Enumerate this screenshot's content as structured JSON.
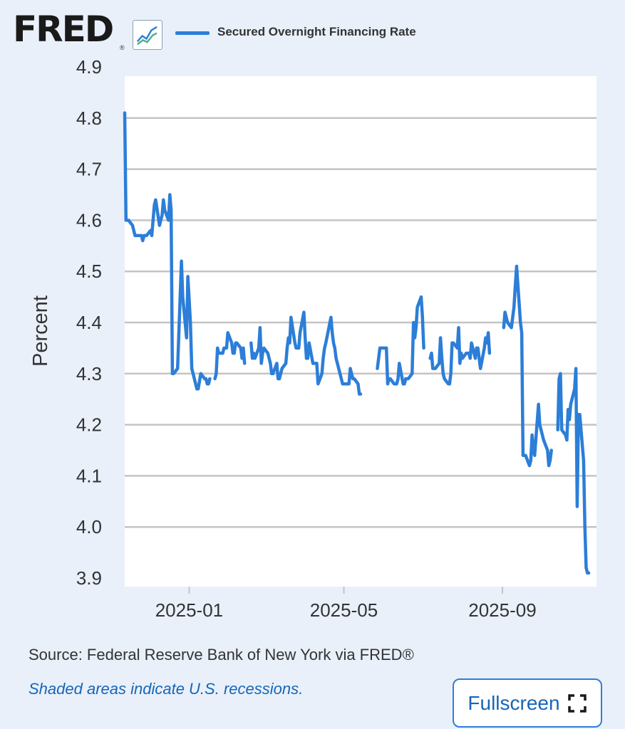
{
  "header": {
    "logo_text": "FRED",
    "logo_registered": "®",
    "logo_icon": "chart-trend-icon"
  },
  "footer": {
    "source": "Source: Federal Reserve Bank of New York via FRED®",
    "recession_note": "Shaded areas indicate U.S. recessions.",
    "fullscreen_label": "Fullscreen",
    "fullscreen_icon": "fullscreen-corners-icon"
  },
  "colors": {
    "background": "#e9f0fa",
    "plot_background": "#ffffff",
    "line": "#2c7ed8",
    "grid": "#c4c4c4",
    "link": "#1766b7"
  },
  "chart_data": {
    "type": "line",
    "ylabel": "Percent",
    "xlabel": "",
    "ylim": [
      3.9,
      4.9
    ],
    "yticks": [
      "3.9",
      "4.0",
      "4.1",
      "4.2",
      "4.3",
      "4.4",
      "4.5",
      "4.6",
      "4.7",
      "4.8",
      "4.9"
    ],
    "xlim": [
      "2024-11-12",
      "2025-11-13"
    ],
    "xticks": [
      "2025-01",
      "2025-05",
      "2025-09"
    ],
    "grid": "horizontal",
    "legend": "top",
    "series": [
      {
        "name": "Secured Overnight Financing Rate",
        "segments": [
          [
            [
              "2024-11-12",
              4.81
            ],
            [
              "2024-11-13",
              4.6
            ],
            [
              "2024-11-14",
              4.6
            ],
            [
              "2024-11-15",
              4.6
            ],
            [
              "2024-11-18",
              4.59
            ],
            [
              "2024-11-19",
              4.58
            ],
            [
              "2024-11-20",
              4.57
            ],
            [
              "2024-11-21",
              4.57
            ],
            [
              "2024-11-22",
              4.57
            ],
            [
              "2024-11-25",
              4.57
            ],
            [
              "2024-11-26",
              4.56
            ],
            [
              "2024-11-27",
              4.57
            ],
            [
              "2024-11-29",
              4.57
            ],
            [
              "2024-12-02",
              4.58
            ],
            [
              "2024-12-03",
              4.57
            ],
            [
              "2024-12-04",
              4.6
            ],
            [
              "2024-12-05",
              4.63
            ],
            [
              "2024-12-06",
              4.64
            ],
            [
              "2024-12-09",
              4.59
            ],
            [
              "2024-12-10",
              4.6
            ],
            [
              "2024-12-11",
              4.61
            ],
            [
              "2024-12-12",
              4.64
            ],
            [
              "2024-12-13",
              4.62
            ],
            [
              "2024-12-16",
              4.6
            ],
            [
              "2024-12-17",
              4.65
            ],
            [
              "2024-12-18",
              4.62
            ],
            [
              "2024-12-19",
              4.3
            ],
            [
              "2024-12-20",
              4.3
            ],
            [
              "2024-12-23",
              4.31
            ],
            [
              "2024-12-24",
              4.38
            ],
            [
              "2024-12-26",
              4.52
            ],
            [
              "2024-12-27",
              4.45
            ],
            [
              "2024-12-30",
              4.37
            ],
            [
              "2024-12-31",
              4.49
            ],
            [
              "2025-01-02",
              4.4
            ],
            [
              "2025-01-03",
              4.31
            ],
            [
              "2025-01-06",
              4.28
            ],
            [
              "2025-01-07",
              4.27
            ],
            [
              "2025-01-08",
              4.27
            ],
            [
              "2025-01-10",
              4.3
            ],
            [
              "2025-01-13",
              4.29
            ],
            [
              "2025-01-14",
              4.29
            ],
            [
              "2025-01-15",
              4.28
            ],
            [
              "2025-01-16",
              4.28
            ],
            [
              "2025-01-17",
              4.29
            ]
          ],
          [
            [
              "2025-01-21",
              4.29
            ],
            [
              "2025-01-22",
              4.3
            ],
            [
              "2025-01-23",
              4.35
            ],
            [
              "2025-01-24",
              4.34
            ],
            [
              "2025-01-27",
              4.34
            ],
            [
              "2025-01-28",
              4.35
            ],
            [
              "2025-01-29",
              4.35
            ],
            [
              "2025-01-30",
              4.35
            ],
            [
              "2025-01-31",
              4.38
            ],
            [
              "2025-02-03",
              4.36
            ],
            [
              "2025-02-04",
              4.34
            ],
            [
              "2025-02-05",
              4.34
            ],
            [
              "2025-02-06",
              4.36
            ],
            [
              "2025-02-07",
              4.36
            ],
            [
              "2025-02-10",
              4.35
            ],
            [
              "2025-02-11",
              4.33
            ],
            [
              "2025-02-12",
              4.35
            ],
            [
              "2025-02-13",
              4.32
            ]
          ],
          [
            [
              "2025-02-18",
              4.36
            ],
            [
              "2025-02-19",
              4.33
            ],
            [
              "2025-02-20",
              4.34
            ],
            [
              "2025-02-21",
              4.33
            ],
            [
              "2025-02-24",
              4.35
            ],
            [
              "2025-02-25",
              4.39
            ],
            [
              "2025-02-26",
              4.32
            ],
            [
              "2025-02-27",
              4.34
            ],
            [
              "2025-02-28",
              4.35
            ],
            [
              "2025-03-03",
              4.34
            ],
            [
              "2025-03-04",
              4.33
            ],
            [
              "2025-03-05",
              4.32
            ],
            [
              "2025-03-06",
              4.3
            ],
            [
              "2025-03-07",
              4.3
            ],
            [
              "2025-03-10",
              4.32
            ],
            [
              "2025-03-11",
              4.29
            ],
            [
              "2025-03-12",
              4.29
            ],
            [
              "2025-03-13",
              4.3
            ],
            [
              "2025-03-14",
              4.31
            ],
            [
              "2025-03-17",
              4.32
            ],
            [
              "2025-03-18",
              4.35
            ],
            [
              "2025-03-19",
              4.37
            ],
            [
              "2025-03-20",
              4.36
            ],
            [
              "2025-03-21",
              4.41
            ],
            [
              "2025-03-24",
              4.36
            ],
            [
              "2025-03-25",
              4.35
            ],
            [
              "2025-03-26",
              4.35
            ],
            [
              "2025-03-27",
              4.35
            ],
            [
              "2025-03-28",
              4.38
            ],
            [
              "2025-03-31",
              4.42
            ],
            [
              "2025-04-01",
              4.37
            ],
            [
              "2025-04-02",
              4.33
            ],
            [
              "2025-04-03",
              4.33
            ],
            [
              "2025-04-04",
              4.36
            ],
            [
              "2025-04-07",
              4.32
            ],
            [
              "2025-04-08",
              4.32
            ],
            [
              "2025-04-09",
              4.32
            ],
            [
              "2025-04-10",
              4.32
            ],
            [
              "2025-04-11",
              4.28
            ],
            [
              "2025-04-14",
              4.3
            ],
            [
              "2025-04-15",
              4.33
            ],
            [
              "2025-04-16",
              4.35
            ],
            [
              "2025-04-17",
              4.36
            ],
            [
              "2025-04-21",
              4.41
            ],
            [
              "2025-04-22",
              4.38
            ],
            [
              "2025-04-23",
              4.36
            ],
            [
              "2025-04-24",
              4.35
            ],
            [
              "2025-04-25",
              4.33
            ],
            [
              "2025-04-28",
              4.3
            ],
            [
              "2025-04-29",
              4.29
            ],
            [
              "2025-04-30",
              4.28
            ],
            [
              "2025-05-01",
              4.28
            ],
            [
              "2025-05-02",
              4.28
            ],
            [
              "2025-05-05",
              4.28
            ],
            [
              "2025-05-06",
              4.31
            ],
            [
              "2025-05-07",
              4.3
            ],
            [
              "2025-05-08",
              4.29
            ],
            [
              "2025-05-09",
              4.29
            ],
            [
              "2025-05-12",
              4.28
            ],
            [
              "2025-05-13",
              4.26
            ],
            [
              "2025-05-14",
              4.26
            ]
          ],
          [
            [
              "2025-05-27",
              4.31
            ],
            [
              "2025-05-28",
              4.33
            ],
            [
              "2025-05-29",
              4.35
            ],
            [
              "2025-05-30",
              4.35
            ],
            [
              "2025-06-02",
              4.35
            ],
            [
              "2025-06-03",
              4.35
            ],
            [
              "2025-06-04",
              4.28
            ],
            [
              "2025-06-05",
              4.29
            ],
            [
              "2025-06-06",
              4.29
            ],
            [
              "2025-06-09",
              4.28
            ],
            [
              "2025-06-10",
              4.28
            ],
            [
              "2025-06-11",
              4.28
            ],
            [
              "2025-06-12",
              4.29
            ],
            [
              "2025-06-13",
              4.32
            ],
            [
              "2025-06-16",
              4.28
            ],
            [
              "2025-06-17",
              4.28
            ],
            [
              "2025-06-18",
              4.29
            ],
            [
              "2025-06-20",
              4.29
            ],
            [
              "2025-06-23",
              4.3
            ],
            [
              "2025-06-24",
              4.4
            ],
            [
              "2025-06-25",
              4.37
            ],
            [
              "2025-06-26",
              4.39
            ],
            [
              "2025-06-27",
              4.43
            ],
            [
              "2025-06-30",
              4.45
            ],
            [
              "2025-07-01",
              4.41
            ],
            [
              "2025-07-02",
              4.35
            ]
          ],
          [
            [
              "2025-07-07",
              4.33
            ],
            [
              "2025-07-08",
              4.34
            ],
            [
              "2025-07-09",
              4.31
            ],
            [
              "2025-07-10",
              4.31
            ],
            [
              "2025-07-11",
              4.31
            ],
            [
              "2025-07-14",
              4.32
            ],
            [
              "2025-07-15",
              4.37
            ],
            [
              "2025-07-16",
              4.33
            ],
            [
              "2025-07-17",
              4.3
            ],
            [
              "2025-07-18",
              4.29
            ],
            [
              "2025-07-21",
              4.28
            ],
            [
              "2025-07-22",
              4.28
            ],
            [
              "2025-07-23",
              4.3
            ],
            [
              "2025-07-24",
              4.36
            ],
            [
              "2025-07-25",
              4.36
            ],
            [
              "2025-07-28",
              4.35
            ],
            [
              "2025-07-29",
              4.39
            ],
            [
              "2025-07-30",
              4.32
            ],
            [
              "2025-07-31",
              4.34
            ],
            [
              "2025-08-01",
              4.33
            ],
            [
              "2025-08-04",
              4.34
            ],
            [
              "2025-08-05",
              4.34
            ],
            [
              "2025-08-06",
              4.34
            ],
            [
              "2025-08-07",
              4.33
            ],
            [
              "2025-08-08",
              4.36
            ],
            [
              "2025-08-11",
              4.33
            ],
            [
              "2025-08-12",
              4.35
            ],
            [
              "2025-08-13",
              4.35
            ],
            [
              "2025-08-14",
              4.33
            ],
            [
              "2025-08-15",
              4.31
            ],
            [
              "2025-08-18",
              4.35
            ],
            [
              "2025-08-19",
              4.37
            ],
            [
              "2025-08-20",
              4.36
            ],
            [
              "2025-08-21",
              4.38
            ],
            [
              "2025-08-22",
              4.34
            ]
          ],
          [
            [
              "2025-09-02",
              4.39
            ],
            [
              "2025-09-03",
              4.42
            ],
            [
              "2025-09-04",
              4.41
            ],
            [
              "2025-09-05",
              4.4
            ],
            [
              "2025-09-08",
              4.39
            ],
            [
              "2025-09-09",
              4.41
            ],
            [
              "2025-09-10",
              4.43
            ],
            [
              "2025-09-11",
              4.47
            ],
            [
              "2025-09-12",
              4.51
            ],
            [
              "2025-09-15",
              4.4
            ],
            [
              "2025-09-16",
              4.38
            ],
            [
              "2025-09-17",
              4.14
            ],
            [
              "2025-09-18",
              4.14
            ],
            [
              "2025-09-19",
              4.14
            ],
            [
              "2025-09-22",
              4.12
            ],
            [
              "2025-09-23",
              4.13
            ],
            [
              "2025-09-24",
              4.18
            ],
            [
              "2025-09-25",
              4.15
            ],
            [
              "2025-09-26",
              4.14
            ],
            [
              "2025-09-29",
              4.24
            ],
            [
              "2025-09-30",
              4.2
            ],
            [
              "2025-10-01",
              4.19
            ],
            [
              "2025-10-02",
              4.18
            ],
            [
              "2025-10-03",
              4.17
            ],
            [
              "2025-10-06",
              4.15
            ],
            [
              "2025-10-07",
              4.12
            ],
            [
              "2025-10-08",
              4.13
            ],
            [
              "2025-10-09",
              4.15
            ]
          ],
          [
            [
              "2025-10-14",
              4.19
            ],
            [
              "2025-10-15",
              4.29
            ],
            [
              "2025-10-16",
              4.3
            ],
            [
              "2025-10-17",
              4.19
            ],
            [
              "2025-10-20",
              4.18
            ],
            [
              "2025-10-21",
              4.17
            ],
            [
              "2025-10-22",
              4.23
            ],
            [
              "2025-10-23",
              4.21
            ],
            [
              "2025-10-24",
              4.24
            ],
            [
              "2025-10-27",
              4.27
            ],
            [
              "2025-10-28",
              4.31
            ],
            [
              "2025-10-29",
              4.04
            ],
            [
              "2025-10-30",
              4.22
            ],
            [
              "2025-10-31",
              4.22
            ],
            [
              "2025-11-03",
              4.13
            ],
            [
              "2025-11-04",
              4.0
            ],
            [
              "2025-11-05",
              3.92
            ],
            [
              "2025-11-06",
              3.91
            ],
            [
              "2025-11-07",
              3.91
            ]
          ]
        ]
      }
    ]
  }
}
